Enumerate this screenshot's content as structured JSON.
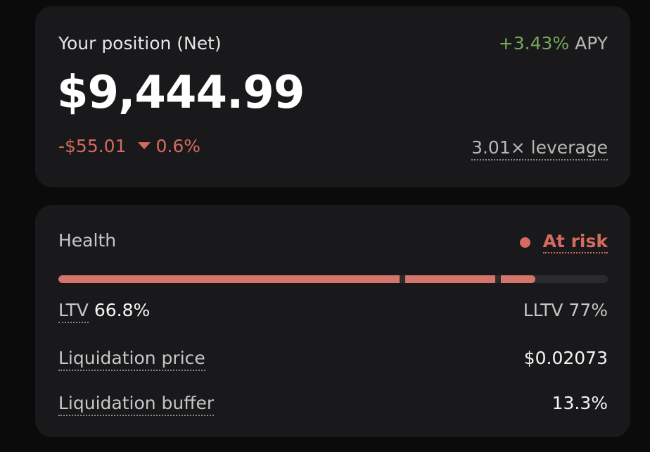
{
  "position": {
    "title": "Your position (Net)",
    "apy_value": "+3.43%",
    "apy_label": "APY",
    "net_value": "$9,444.99",
    "change_amount": "-$55.01",
    "change_percent": "0.6%",
    "leverage": "3.01× leverage",
    "colors": {
      "positive": "#78a85a",
      "negative": "#d46b5e"
    }
  },
  "health": {
    "label": "Health",
    "status": "At risk",
    "status_color": "#d46b5e",
    "bar_fill_fraction": 0.868,
    "ltv_label": "LTV",
    "ltv_value": "66.8%",
    "lltv": "LLTV 77%",
    "liquidation_price_label": "Liquidation price",
    "liquidation_price_value": "$0.02073",
    "liquidation_buffer_label": "Liquidation buffer",
    "liquidation_buffer_value": "13.3%"
  }
}
